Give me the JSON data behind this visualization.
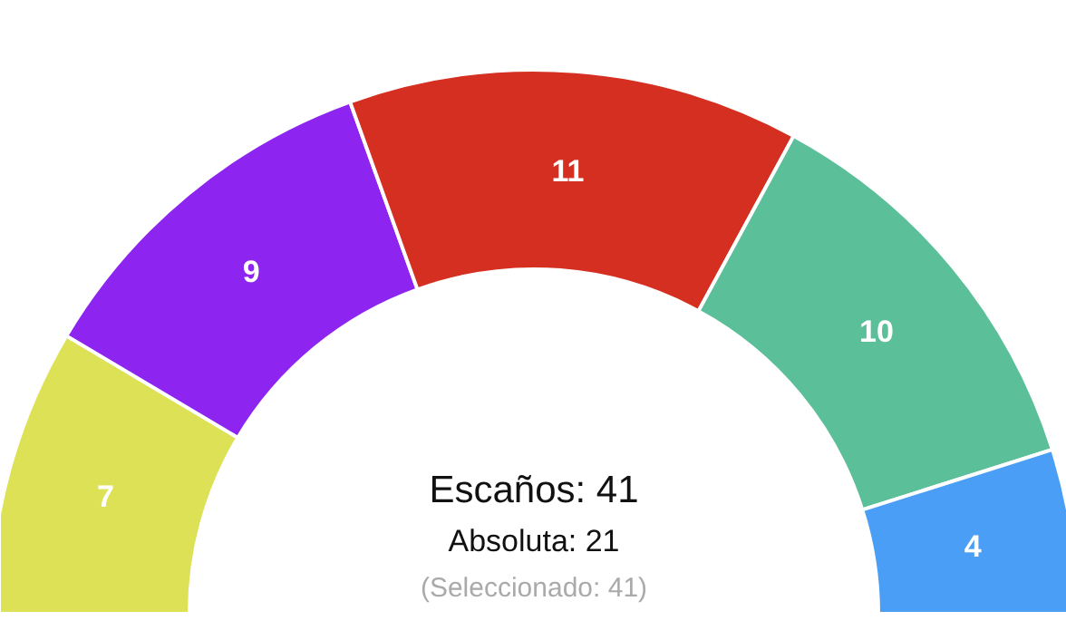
{
  "chart_data": {
    "type": "donut",
    "categories": [
      null,
      null,
      null,
      null,
      null
    ],
    "values": [
      7,
      9,
      11,
      10,
      4
    ],
    "colors": [
      "#dde155",
      "#8e24f0",
      "#d42f20",
      "#5bbf9a",
      "#4a9ef5"
    ],
    "data_labels": true,
    "annotations": [
      "Escaños: 41",
      "Absoluta: 21",
      "(Seleccionado: 41)"
    ]
  }
}
